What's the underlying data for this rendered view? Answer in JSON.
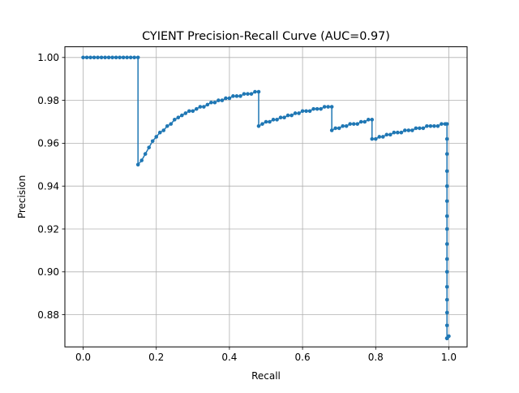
{
  "chart_data": {
    "type": "line",
    "title": "CYIENT Precision-Recall Curve (AUC=0.97)",
    "xlabel": "Recall",
    "ylabel": "Precision",
    "xlim": [
      -0.05,
      1.05
    ],
    "ylim": [
      0.865,
      1.005
    ],
    "xticks": [
      0.0,
      0.2,
      0.4,
      0.6,
      0.8,
      1.0
    ],
    "xtick_labels": [
      "0.0",
      "0.2",
      "0.4",
      "0.6",
      "0.8",
      "1.0"
    ],
    "yticks": [
      0.88,
      0.9,
      0.92,
      0.94,
      0.96,
      0.98,
      1.0
    ],
    "ytick_labels": [
      "0.88",
      "0.90",
      "0.92",
      "0.94",
      "0.96",
      "0.98",
      "1.00"
    ],
    "grid": true,
    "color": "#1f77b4",
    "marker": "dot",
    "series": [
      {
        "x": [
          0.0,
          0.01,
          0.02,
          0.03,
          0.04,
          0.05,
          0.06,
          0.07,
          0.08,
          0.09,
          0.1,
          0.11,
          0.12,
          0.13,
          0.14,
          0.15,
          0.15,
          0.16,
          0.17,
          0.18,
          0.19,
          0.2,
          0.21,
          0.22,
          0.23,
          0.24,
          0.25,
          0.26,
          0.27,
          0.28,
          0.29,
          0.3,
          0.31,
          0.32,
          0.33,
          0.34,
          0.35,
          0.36,
          0.37,
          0.38,
          0.39,
          0.4,
          0.41,
          0.42,
          0.43,
          0.44,
          0.45,
          0.46,
          0.47,
          0.48,
          0.48,
          0.49,
          0.5,
          0.51,
          0.52,
          0.53,
          0.54,
          0.55,
          0.56,
          0.57,
          0.58,
          0.59,
          0.6,
          0.61,
          0.62,
          0.63,
          0.64,
          0.65,
          0.66,
          0.67,
          0.68,
          0.68,
          0.69,
          0.7,
          0.71,
          0.72,
          0.73,
          0.74,
          0.75,
          0.76,
          0.77,
          0.78,
          0.79,
          0.79,
          0.8,
          0.81,
          0.82,
          0.83,
          0.84,
          0.85,
          0.86,
          0.87,
          0.88,
          0.89,
          0.9,
          0.91,
          0.92,
          0.93,
          0.94,
          0.95,
          0.96,
          0.97,
          0.98,
          0.99,
          0.995,
          0.995,
          0.995,
          0.995,
          0.995,
          0.995,
          0.995,
          0.995,
          0.995,
          0.995,
          0.995,
          0.995,
          0.995,
          0.995,
          0.995,
          0.995,
          0.995,
          0.995,
          0.995,
          0.995,
          1.0
        ],
        "y": [
          1.0,
          1.0,
          1.0,
          1.0,
          1.0,
          1.0,
          1.0,
          1.0,
          1.0,
          1.0,
          1.0,
          1.0,
          1.0,
          1.0,
          1.0,
          1.0,
          0.95,
          0.952,
          0.955,
          0.958,
          0.961,
          0.963,
          0.965,
          0.966,
          0.968,
          0.969,
          0.971,
          0.972,
          0.973,
          0.974,
          0.975,
          0.975,
          0.976,
          0.977,
          0.977,
          0.978,
          0.979,
          0.979,
          0.98,
          0.98,
          0.981,
          0.981,
          0.982,
          0.982,
          0.982,
          0.983,
          0.983,
          0.983,
          0.984,
          0.984,
          0.968,
          0.969,
          0.97,
          0.97,
          0.971,
          0.971,
          0.972,
          0.972,
          0.973,
          0.973,
          0.974,
          0.974,
          0.975,
          0.975,
          0.975,
          0.976,
          0.976,
          0.976,
          0.977,
          0.977,
          0.977,
          0.966,
          0.967,
          0.967,
          0.968,
          0.968,
          0.969,
          0.969,
          0.969,
          0.97,
          0.97,
          0.971,
          0.971,
          0.962,
          0.962,
          0.963,
          0.963,
          0.964,
          0.964,
          0.965,
          0.965,
          0.965,
          0.966,
          0.966,
          0.966,
          0.967,
          0.967,
          0.967,
          0.968,
          0.968,
          0.968,
          0.968,
          0.969,
          0.969,
          0.969,
          0.962,
          0.955,
          0.947,
          0.94,
          0.933,
          0.926,
          0.92,
          0.913,
          0.906,
          0.9,
          0.893,
          0.887,
          0.881,
          0.875,
          0.869,
          0.869,
          0.869,
          0.869,
          0.869,
          0.87
        ]
      }
    ]
  }
}
